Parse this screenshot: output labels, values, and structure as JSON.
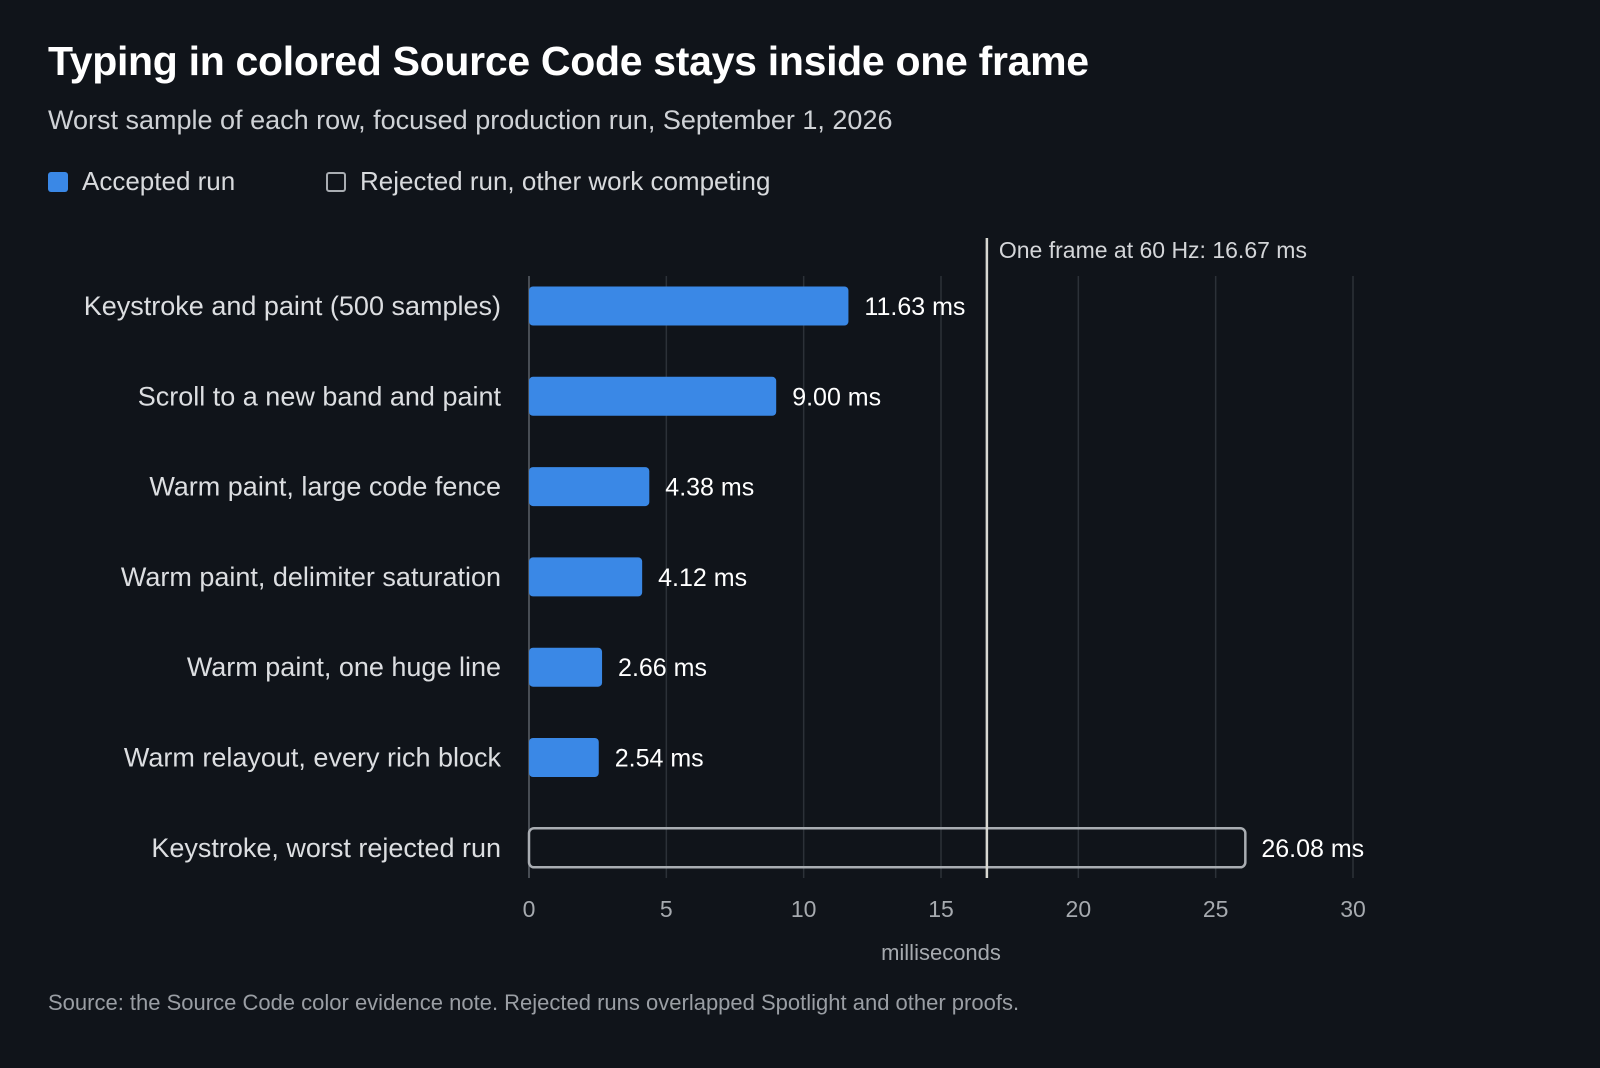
{
  "title": "Typing in colored Source Code stays inside one frame",
  "subtitle": "Worst sample of each row, focused production run, September 1, 2026",
  "legend": [
    {
      "label": "Accepted run",
      "style": "filled",
      "color": "#3a88e6"
    },
    {
      "label": "Rejected run, other work competing",
      "style": "outline",
      "color": "#a9adb2"
    }
  ],
  "source": "Source: the Source Code color evidence note. Rejected runs overlapped Spotlight and other proofs.",
  "chart_data": {
    "type": "bar",
    "orientation": "horizontal",
    "categories": [
      "Keystroke and paint (500 samples)",
      "Scroll to a new band and paint",
      "Warm paint, large code fence",
      "Warm paint, delimiter saturation",
      "Warm paint, one huge line",
      "Warm relayout, every rich block",
      "Keystroke, worst rejected run"
    ],
    "values": [
      11.63,
      9.0,
      4.38,
      4.12,
      2.66,
      2.54,
      26.08
    ],
    "value_labels": [
      "11.63 ms",
      "9.00 ms",
      "4.38 ms",
      "4.12 ms",
      "2.66 ms",
      "2.54 ms",
      "26.08 ms"
    ],
    "status": [
      "accepted",
      "accepted",
      "accepted",
      "accepted",
      "accepted",
      "accepted",
      "rejected"
    ],
    "xlabel": "milliseconds",
    "xlim": [
      0,
      30
    ],
    "xticks": [
      0,
      5,
      10,
      15,
      20,
      25,
      30
    ],
    "grid": true,
    "reference_line": {
      "value": 16.67,
      "label": "One frame at 60 Hz: 16.67 ms"
    },
    "colors": {
      "accepted": "#3a88e6",
      "rejected_stroke": "#a9adb2",
      "grid": "#2c3138",
      "reference": "#d8d8d2"
    }
  }
}
